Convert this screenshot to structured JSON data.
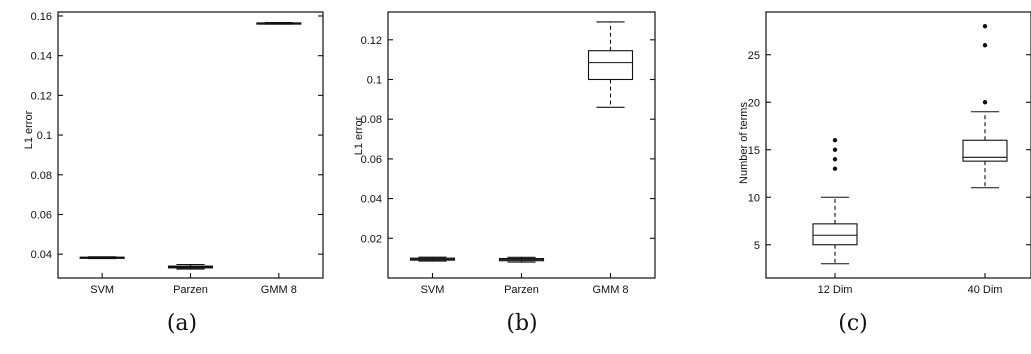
{
  "chart_data": [
    {
      "type": "box",
      "panel_label": "(a)",
      "ylabel": "L1 error",
      "categories": [
        "SVM",
        "Parzen",
        "GMM 8"
      ],
      "ylim": [
        0.028,
        0.162
      ],
      "yticks": [
        0.04,
        0.06,
        0.08,
        0.1,
        0.12,
        0.14,
        0.16
      ],
      "ytick_labels": [
        "0.04",
        "0.06",
        "0.08",
        "0.1",
        "0.12",
        "0.14",
        "0.16"
      ],
      "boxes": [
        {
          "whisker_low": 0.0378,
          "q1": 0.0381,
          "median": 0.0383,
          "q3": 0.0385,
          "whisker_high": 0.0387,
          "outliers": []
        },
        {
          "whisker_low": 0.0325,
          "q1": 0.0331,
          "median": 0.0335,
          "q3": 0.034,
          "whisker_high": 0.0348,
          "outliers": []
        },
        {
          "whisker_low": 0.1559,
          "q1": 0.1561,
          "median": 0.1563,
          "q3": 0.1565,
          "whisker_high": 0.1567,
          "outliers": []
        }
      ],
      "grid": false
    },
    {
      "type": "box",
      "panel_label": "(b)",
      "ylabel": "L1 error",
      "categories": [
        "SVM",
        "Parzen",
        "GMM 8"
      ],
      "ylim": [
        0.0,
        0.134
      ],
      "yticks": [
        0.02,
        0.04,
        0.06,
        0.08,
        0.1,
        0.12
      ],
      "ytick_labels": [
        "0.02",
        "0.04",
        "0.06",
        "0.08",
        "0.1",
        "0.12"
      ],
      "boxes": [
        {
          "whisker_low": 0.0085,
          "q1": 0.009,
          "median": 0.0095,
          "q3": 0.01,
          "whisker_high": 0.0105,
          "outliers": []
        },
        {
          "whisker_low": 0.008,
          "q1": 0.0087,
          "median": 0.0092,
          "q3": 0.0098,
          "whisker_high": 0.0104,
          "outliers": []
        },
        {
          "whisker_low": 0.086,
          "q1": 0.1,
          "median": 0.1085,
          "q3": 0.1145,
          "whisker_high": 0.129,
          "outliers": []
        }
      ],
      "grid": false
    },
    {
      "type": "box",
      "panel_label": "(c)",
      "ylabel": "Number of terms",
      "categories": [
        "12 Dim",
        "40 Dim"
      ],
      "ylim": [
        1.5,
        29.5
      ],
      "yticks": [
        5,
        10,
        15,
        20,
        25
      ],
      "ytick_labels": [
        "5",
        "10",
        "15",
        "20",
        "25"
      ],
      "boxes": [
        {
          "whisker_low": 3,
          "q1": 5,
          "median": 6,
          "q3": 7.2,
          "whisker_high": 10,
          "outliers": [
            13,
            14,
            15,
            16
          ]
        },
        {
          "whisker_low": 11,
          "q1": 13.8,
          "median": 14.2,
          "q3": 16,
          "whisker_high": 19,
          "outliers": [
            20,
            26,
            28
          ]
        }
      ],
      "grid": false
    }
  ]
}
